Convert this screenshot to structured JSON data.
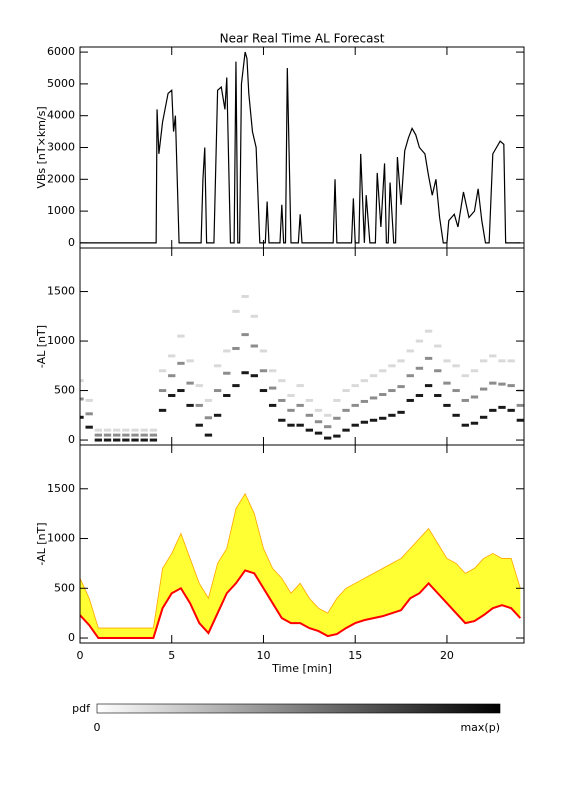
{
  "chart_data": [
    {
      "type": "line",
      "title": "Near Real Time AL Forecast",
      "ylabel": "VBs [nT×km/s]",
      "x": [
        0,
        4.15,
        4.2,
        4.3,
        4.5,
        4.8,
        5.0,
        5.1,
        5.2,
        5.4,
        6.6,
        6.7,
        6.8,
        6.9,
        7.3,
        7.5,
        7.7,
        7.9,
        8.0,
        8.2,
        8.4,
        8.5,
        8.6,
        8.7,
        8.8,
        9.0,
        9.1,
        9.2,
        9.4,
        9.6,
        9.8,
        10.1,
        10.2,
        10.3,
        10.9,
        11.0,
        11.1,
        11.2,
        11.3,
        11.5,
        11.9,
        12.0,
        12.1,
        13.8,
        13.9,
        14.0,
        14.8,
        14.9,
        15.0,
        15.2,
        15.3,
        15.5,
        15.6,
        15.8,
        16.1,
        16.2,
        16.4,
        16.6,
        16.7,
        16.8,
        16.9,
        17.1,
        17.2,
        17.3,
        17.5,
        17.7,
        17.9,
        18.1,
        18.3,
        18.5,
        18.8,
        19.0,
        19.2,
        19.4,
        19.6,
        19.8,
        20.0,
        20.1,
        20.4,
        20.6,
        20.9,
        21.2,
        21.5,
        21.7,
        21.9,
        22.1,
        22.3,
        22.5,
        22.7,
        22.9,
        23.1,
        23.2,
        24
      ],
      "values": [
        0,
        0,
        4200,
        2800,
        3800,
        4700,
        4800,
        3500,
        4000,
        0,
        0,
        2000,
        3000,
        0,
        0,
        4800,
        4900,
        4200,
        5200,
        0,
        0,
        5700,
        0,
        0,
        5000,
        6000,
        5800,
        4700,
        3500,
        3000,
        0,
        0,
        1300,
        0,
        0,
        1200,
        0,
        0,
        5500,
        0,
        0,
        900,
        0,
        0,
        2000,
        0,
        0,
        1400,
        0,
        0,
        2800,
        0,
        1500,
        0,
        0,
        2200,
        500,
        2500,
        0,
        0,
        1900,
        0,
        0,
        2700,
        1200,
        2900,
        3300,
        3600,
        3400,
        3000,
        2800,
        2100,
        1500,
        2000,
        800,
        0,
        0,
        700,
        900,
        500,
        1600,
        800,
        1000,
        1700,
        700,
        0,
        0,
        2800,
        3000,
        3200,
        3100,
        0,
        0
      ],
      "color": "#000000",
      "xlim": [
        0,
        24.2
      ],
      "xticks": [
        0,
        5,
        10,
        15,
        20
      ],
      "xtick_labels": false,
      "ylim": [
        -160,
        6160
      ],
      "yticks": [
        0,
        1000,
        2000,
        3000,
        4000,
        5000,
        6000
      ]
    },
    {
      "type": "heatmap",
      "ylabel": "-AL [nT]",
      "color": "#000000",
      "x": [
        0,
        0.5,
        1,
        1.5,
        2,
        2.5,
        3,
        3.5,
        4,
        4.5,
        5,
        5.5,
        6,
        6.5,
        7,
        7.5,
        8,
        8.5,
        9,
        9.5,
        10,
        10.5,
        11,
        11.5,
        12,
        12.5,
        13,
        13.5,
        14,
        14.5,
        15,
        15.5,
        16,
        16.5,
        17,
        17.5,
        18,
        18.5,
        19,
        19.5,
        20,
        20.5,
        21,
        21.5,
        22,
        22.5,
        23,
        23.5,
        24
      ],
      "cells": [
        {
          "p": 0.9,
          "y": [
            230,
            130,
            0,
            0,
            0,
            0,
            0,
            0,
            0,
            300,
            450,
            500,
            350,
            150,
            50,
            250,
            450,
            550,
            680,
            650,
            500,
            350,
            200,
            150,
            150,
            100,
            70,
            20,
            40,
            100,
            150,
            180,
            200,
            220,
            250,
            280,
            400,
            450,
            550,
            450,
            350,
            250,
            150,
            170,
            230,
            300,
            330,
            300,
            200
          ]
        },
        {
          "p": 0.45,
          "y": [
            415,
            265,
            50,
            50,
            50,
            50,
            50,
            50,
            50,
            500,
            650,
            775,
            575,
            350,
            225,
            500,
            675,
            925,
            1065,
            950,
            700,
            525,
            400,
            300,
            350,
            250,
            185,
            135,
            220,
            300,
            350,
            390,
            425,
            460,
            500,
            540,
            650,
            725,
            825,
            700,
            575,
            500,
            400,
            435,
            515,
            575,
            565,
            550,
            350
          ]
        },
        {
          "p": 0.15,
          "y": [
            600,
            400,
            100,
            100,
            100,
            100,
            100,
            100,
            100,
            700,
            850,
            1050,
            800,
            550,
            400,
            750,
            900,
            1300,
            1450,
            1250,
            900,
            700,
            600,
            450,
            550,
            400,
            300,
            250,
            400,
            500,
            550,
            600,
            650,
            700,
            750,
            800,
            900,
            1000,
            1100,
            950,
            800,
            750,
            650,
            700,
            800,
            850,
            800,
            800,
            500
          ]
        }
      ],
      "xlim": [
        0,
        24.2
      ],
      "xticks": [
        0,
        5,
        10,
        15,
        20
      ],
      "xtick_labels": false,
      "ylim": [
        -50,
        1940
      ],
      "yticks": [
        0,
        500,
        1000,
        1500
      ]
    },
    {
      "type": "band",
      "ylabel": "-AL [nT]",
      "xlabel": "Time [min]",
      "x": [
        0,
        0.5,
        1,
        1.5,
        2,
        2.5,
        3,
        3.5,
        4,
        4.5,
        5,
        5.5,
        6,
        6.5,
        7,
        7.5,
        8,
        8.5,
        9,
        9.5,
        10,
        10.5,
        11,
        11.5,
        12,
        12.5,
        13,
        13.5,
        14,
        14.5,
        15,
        15.5,
        16,
        16.5,
        17,
        17.5,
        18,
        18.5,
        19,
        19.5,
        20,
        20.5,
        21,
        21.5,
        22,
        22.5,
        23,
        23.5,
        24
      ],
      "upper": [
        600,
        400,
        100,
        100,
        100,
        100,
        100,
        100,
        100,
        700,
        850,
        1050,
        800,
        550,
        400,
        750,
        900,
        1300,
        1450,
        1250,
        900,
        700,
        600,
        450,
        550,
        400,
        300,
        250,
        400,
        500,
        550,
        600,
        650,
        700,
        750,
        800,
        900,
        1000,
        1100,
        950,
        800,
        750,
        650,
        700,
        800,
        850,
        800,
        800,
        500
      ],
      "median": [
        230,
        130,
        0,
        0,
        0,
        0,
        0,
        0,
        0,
        300,
        450,
        500,
        350,
        150,
        50,
        250,
        450,
        550,
        680,
        650,
        500,
        350,
        200,
        150,
        150,
        100,
        70,
        20,
        40,
        100,
        150,
        180,
        200,
        220,
        250,
        280,
        400,
        450,
        550,
        450,
        350,
        250,
        150,
        170,
        230,
        300,
        330,
        300,
        200
      ],
      "fill_color": "#ffff33",
      "edge_color": "#ffa500",
      "line_color": "#ff0000",
      "xlim": [
        0,
        24.2
      ],
      "xticks": [
        0,
        5,
        10,
        15,
        20
      ],
      "xtick_labels": true,
      "ylim": [
        -50,
        1940
      ],
      "yticks": [
        0,
        500,
        1000,
        1500
      ]
    }
  ],
  "colorbar": {
    "label": "pdf",
    "min_label": "0",
    "max_label": "max(p)"
  }
}
